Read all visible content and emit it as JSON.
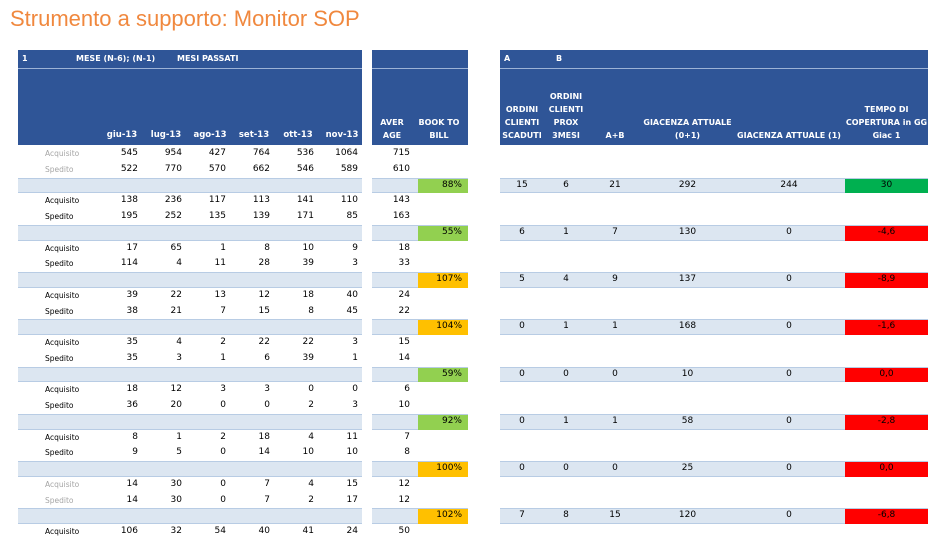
{
  "title": "Strumento a supporto: Monitor SOP",
  "header": {
    "left_top": [
      "1",
      "MESE (N-6); (N-1)",
      "MESI PASSATI"
    ],
    "months": [
      "giu-13",
      "lug-13",
      "ago-13",
      "set-13",
      "ott-13",
      "nov-13"
    ],
    "average": "AVER AGE",
    "book_to_bill": "BOOK TO BILL",
    "right_top": [
      "A",
      "B"
    ],
    "right_columns": [
      "ORDINI CLIENTI SCADUTI",
      "ORDINI CLIENTI PROX 3MESI",
      "A+B",
      "GIACENZA ATTUALE (0+1)",
      "GIACENZA ATTUALE (1)",
      "TEMPO DI COPERTURA in GG Giac 1"
    ]
  },
  "groups": [
    {
      "rows": [
        {
          "label": "Acquisito",
          "label_color": "#a6a6a6",
          "values": [
            "545",
            "954",
            "427",
            "764",
            "536",
            "1064"
          ],
          "average": "715"
        },
        {
          "label": "Spedito",
          "label_color": "#a6a6a6",
          "values": [
            "522",
            "770",
            "570",
            "662",
            "546",
            "589"
          ],
          "average": "610"
        }
      ],
      "summary": {
        "book_to_bill": "88%",
        "book_to_bill_color": "#92d050",
        "values": [
          "15",
          "6",
          "21",
          "292",
          "244",
          "30"
        ],
        "cover_color": "#00b050"
      }
    },
    {
      "rows": [
        {
          "label": "Acquisito",
          "values": [
            "138",
            "236",
            "117",
            "113",
            "141",
            "110"
          ],
          "average": "143"
        },
        {
          "label": "Spedito",
          "values": [
            "195",
            "252",
            "135",
            "139",
            "171",
            "85"
          ],
          "average": "163"
        }
      ],
      "summary": {
        "book_to_bill": "55%",
        "book_to_bill_color": "#92d050",
        "values": [
          "6",
          "1",
          "7",
          "130",
          "0",
          "-4,6"
        ],
        "cover_color": "#ff0000"
      }
    },
    {
      "rows": [
        {
          "label": "Acquisito",
          "values": [
            "17",
            "65",
            "1",
            "8",
            "10",
            "9"
          ],
          "average": "18"
        },
        {
          "label": "Spedito",
          "values": [
            "114",
            "4",
            "11",
            "28",
            "39",
            "3"
          ],
          "average": "33"
        }
      ],
      "summary": {
        "book_to_bill": "107%",
        "book_to_bill_color": "#ffc000",
        "values": [
          "5",
          "4",
          "9",
          "137",
          "0",
          "-8,9"
        ],
        "cover_color": "#ff0000"
      }
    },
    {
      "rows": [
        {
          "label": "Acquisito",
          "values": [
            "39",
            "22",
            "13",
            "12",
            "18",
            "40"
          ],
          "average": "24"
        },
        {
          "label": "Spedito",
          "values": [
            "38",
            "21",
            "7",
            "15",
            "8",
            "45"
          ],
          "average": "22"
        }
      ],
      "summary": {
        "book_to_bill": "104%",
        "book_to_bill_color": "#ffc000",
        "values": [
          "0",
          "1",
          "1",
          "168",
          "0",
          "-1,6"
        ],
        "cover_color": "#ff0000"
      }
    },
    {
      "rows": [
        {
          "label": "Acquisito",
          "values": [
            "35",
            "4",
            "2",
            "22",
            "22",
            "3"
          ],
          "average": "15"
        },
        {
          "label": "Spedito",
          "values": [
            "35",
            "3",
            "1",
            "6",
            "39",
            "1"
          ],
          "average": "14"
        }
      ],
      "summary": {
        "book_to_bill": "59%",
        "book_to_bill_color": "#92d050",
        "values": [
          "0",
          "0",
          "0",
          "10",
          "0",
          "0,0"
        ],
        "cover_color": "#ff0000"
      }
    },
    {
      "rows": [
        {
          "label": "Acquisito",
          "values": [
            "18",
            "12",
            "3",
            "3",
            "0",
            "0"
          ],
          "average": "6"
        },
        {
          "label": "Spedito",
          "values": [
            "36",
            "20",
            "0",
            "0",
            "2",
            "3"
          ],
          "average": "10"
        }
      ],
      "summary": {
        "book_to_bill": "92%",
        "book_to_bill_color": "#92d050",
        "values": [
          "0",
          "1",
          "1",
          "58",
          "0",
          "-2,8"
        ],
        "cover_color": "#ff0000"
      }
    },
    {
      "rows": [
        {
          "label": "Acquisito",
          "values": [
            "8",
            "1",
            "2",
            "18",
            "4",
            "11"
          ],
          "average": "7"
        },
        {
          "label": "Spedito",
          "values": [
            "9",
            "5",
            "0",
            "14",
            "10",
            "10"
          ],
          "average": "8"
        }
      ],
      "summary": {
        "book_to_bill": "100%",
        "book_to_bill_color": "#ffc000",
        "values": [
          "0",
          "0",
          "0",
          "25",
          "0",
          "0,0"
        ],
        "cover_color": "#ff0000"
      }
    },
    {
      "rows": [
        {
          "label": "Acquisito",
          "label_color": "#a6a6a6",
          "values": [
            "14",
            "30",
            "0",
            "7",
            "4",
            "15"
          ],
          "average": "12"
        },
        {
          "label": "Spedito",
          "label_color": "#a6a6a6",
          "values": [
            "14",
            "30",
            "0",
            "7",
            "2",
            "17"
          ],
          "average": "12"
        }
      ],
      "summary": {
        "book_to_bill": "102%",
        "book_to_bill_color": "#ffc000",
        "values": [
          "7",
          "8",
          "15",
          "120",
          "0",
          "-6,8"
        ],
        "cover_color": "#ff0000"
      }
    },
    {
      "rows": [
        {
          "label": "Acquisito",
          "values": [
            "106",
            "32",
            "54",
            "40",
            "41",
            "24"
          ],
          "average": "50"
        }
      ]
    }
  ]
}
